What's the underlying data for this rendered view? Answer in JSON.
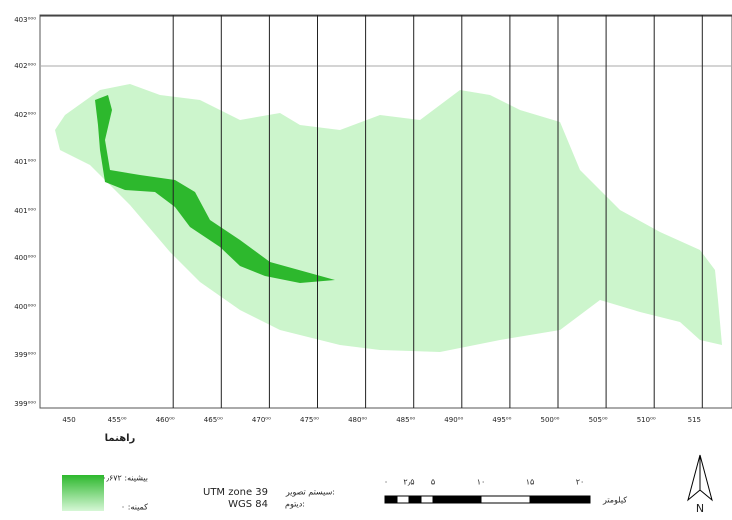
{
  "map": {
    "y_labels": [
      "403⁰⁰⁰",
      "402⁰⁰⁰",
      "402⁰⁰⁰",
      "401⁰⁰⁰",
      "401⁰⁰⁰",
      "400⁰⁰⁰",
      "400⁰⁰⁰",
      "399⁰⁰⁰",
      "399⁰⁰⁰"
    ],
    "x_labels": [
      "450",
      "455⁰⁰",
      "460⁰⁰",
      "465⁰⁰",
      "470⁰⁰",
      "475⁰⁰",
      "480⁰⁰",
      "485⁰⁰",
      "490⁰⁰",
      "495⁰⁰",
      "500⁰⁰",
      "505⁰⁰",
      "510⁰⁰",
      "515"
    ]
  },
  "legend": {
    "title": "راهنما",
    "max": "بیشینه: ۰٫۶۷۲",
    "min": "کمینه: ۰",
    "projection_label": "سیستم تصویر:",
    "projection": "UTM zone 39",
    "datum_label": "دیتوم:",
    "datum": "WGS 84",
    "scale_labels": [
      "۰",
      "۲٫۵",
      "۵",
      "۱۰",
      "۱۵",
      "۲۰"
    ],
    "scale_unit": "کیلومتر",
    "north": "N"
  }
}
